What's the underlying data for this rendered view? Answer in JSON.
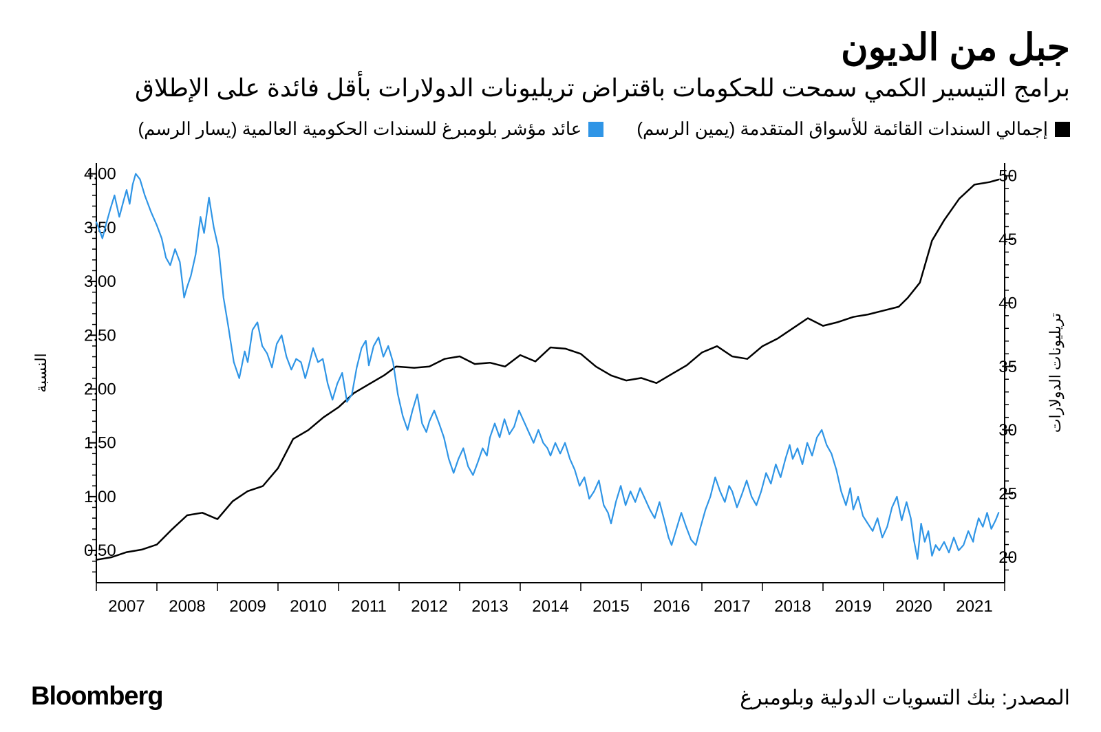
{
  "title": "جبل من الديون",
  "subtitle": "برامج التيسير الكمي سمحت للحكومات باقتراض تريليونات الدولارات بأقل فائدة على الإطلاق",
  "legend": {
    "series_black": {
      "label": "إجمالي السندات القائمة للأسواق المتقدمة (يمين الرسم)",
      "color": "#000000"
    },
    "series_blue": {
      "label": "عائد مؤشر بلومبرغ للسندات الحكومية العالمية (يسار الرسم)",
      "color": "#2f95e6"
    }
  },
  "source": "المصدر: بنك التسويات الدولية وبلومبرغ",
  "brand": "Bloomberg",
  "chart": {
    "type": "dual-axis-line",
    "x": {
      "years": [
        "2007",
        "2008",
        "2009",
        "2010",
        "2011",
        "2012",
        "2013",
        "2014",
        "2015",
        "2016",
        "2017",
        "2018",
        "2019",
        "2020",
        "2021"
      ],
      "start_year": 2006.5,
      "end_year": 2021.5
    },
    "left_axis": {
      "label": "النسبة",
      "min": 0.2,
      "max": 4.1,
      "ticks": [
        0.5,
        1.0,
        1.5,
        2.0,
        2.5,
        3.0,
        3.5,
        4.0
      ],
      "tick_labels": [
        "0.50",
        "1.00",
        "1.50",
        "2.00",
        "2.50",
        "3.00",
        "3.50",
        "4.00"
      ]
    },
    "right_axis": {
      "label": "تريليونات الدولارات",
      "min": 18,
      "max": 51,
      "ticks": [
        20,
        25,
        30,
        35,
        40,
        45,
        50
      ],
      "tick_labels": [
        "20",
        "25",
        "30",
        "35",
        "40",
        "45",
        "50"
      ]
    },
    "series_black": {
      "axis": "right",
      "color": "#000000",
      "stroke_width": 2.5,
      "data": [
        [
          2006.5,
          19.8
        ],
        [
          2006.75,
          20.0
        ],
        [
          2007.0,
          20.4
        ],
        [
          2007.25,
          20.6
        ],
        [
          2007.5,
          21.0
        ],
        [
          2007.75,
          22.2
        ],
        [
          2008.0,
          23.3
        ],
        [
          2008.25,
          23.5
        ],
        [
          2008.5,
          23.0
        ],
        [
          2008.75,
          24.4
        ],
        [
          2009.0,
          25.2
        ],
        [
          2009.25,
          25.6
        ],
        [
          2009.5,
          27.0
        ],
        [
          2009.75,
          29.3
        ],
        [
          2010.0,
          30.0
        ],
        [
          2010.25,
          31.0
        ],
        [
          2010.5,
          31.8
        ],
        [
          2010.75,
          32.9
        ],
        [
          2011.0,
          33.6
        ],
        [
          2011.25,
          34.3
        ],
        [
          2011.45,
          35.0
        ],
        [
          2011.75,
          34.9
        ],
        [
          2012.0,
          35.0
        ],
        [
          2012.25,
          35.6
        ],
        [
          2012.5,
          35.8
        ],
        [
          2012.75,
          35.2
        ],
        [
          2013.0,
          35.3
        ],
        [
          2013.25,
          35.0
        ],
        [
          2013.5,
          35.9
        ],
        [
          2013.75,
          35.4
        ],
        [
          2014.0,
          36.5
        ],
        [
          2014.25,
          36.4
        ],
        [
          2014.5,
          36.0
        ],
        [
          2014.75,
          35.0
        ],
        [
          2015.0,
          34.3
        ],
        [
          2015.25,
          33.9
        ],
        [
          2015.5,
          34.1
        ],
        [
          2015.75,
          33.7
        ],
        [
          2016.0,
          34.4
        ],
        [
          2016.25,
          35.1
        ],
        [
          2016.5,
          36.1
        ],
        [
          2016.75,
          36.6
        ],
        [
          2017.0,
          35.8
        ],
        [
          2017.25,
          35.6
        ],
        [
          2017.5,
          36.6
        ],
        [
          2017.75,
          37.2
        ],
        [
          2018.0,
          38.0
        ],
        [
          2018.25,
          38.8
        ],
        [
          2018.5,
          38.2
        ],
        [
          2018.75,
          38.5
        ],
        [
          2019.0,
          38.9
        ],
        [
          2019.25,
          39.1
        ],
        [
          2019.5,
          39.4
        ],
        [
          2019.75,
          39.7
        ],
        [
          2019.9,
          40.4
        ],
        [
          2020.1,
          41.6
        ],
        [
          2020.3,
          44.9
        ],
        [
          2020.5,
          46.5
        ],
        [
          2020.75,
          48.2
        ],
        [
          2021.0,
          49.3
        ],
        [
          2021.25,
          49.5
        ],
        [
          2021.4,
          49.7
        ]
      ]
    },
    "series_blue": {
      "axis": "left",
      "color": "#2f95e6",
      "stroke_width": 2.2,
      "data": [
        [
          2006.5,
          3.55
        ],
        [
          2006.55,
          3.48
        ],
        [
          2006.6,
          3.4
        ],
        [
          2006.67,
          3.55
        ],
        [
          2006.73,
          3.67
        ],
        [
          2006.8,
          3.8
        ],
        [
          2006.88,
          3.6
        ],
        [
          2006.95,
          3.75
        ],
        [
          2007.0,
          3.85
        ],
        [
          2007.05,
          3.72
        ],
        [
          2007.1,
          3.9
        ],
        [
          2007.15,
          4.0
        ],
        [
          2007.22,
          3.95
        ],
        [
          2007.3,
          3.8
        ],
        [
          2007.4,
          3.65
        ],
        [
          2007.5,
          3.52
        ],
        [
          2007.58,
          3.4
        ],
        [
          2007.65,
          3.22
        ],
        [
          2007.72,
          3.15
        ],
        [
          2007.8,
          3.3
        ],
        [
          2007.88,
          3.18
        ],
        [
          2007.95,
          2.85
        ],
        [
          2008.0,
          2.95
        ],
        [
          2008.06,
          3.05
        ],
        [
          2008.14,
          3.25
        ],
        [
          2008.22,
          3.6
        ],
        [
          2008.28,
          3.45
        ],
        [
          2008.36,
          3.78
        ],
        [
          2008.44,
          3.5
        ],
        [
          2008.52,
          3.3
        ],
        [
          2008.6,
          2.85
        ],
        [
          2008.68,
          2.58
        ],
        [
          2008.77,
          2.25
        ],
        [
          2008.86,
          2.1
        ],
        [
          2008.95,
          2.35
        ],
        [
          2009.0,
          2.25
        ],
        [
          2009.08,
          2.55
        ],
        [
          2009.16,
          2.62
        ],
        [
          2009.24,
          2.4
        ],
        [
          2009.32,
          2.33
        ],
        [
          2009.4,
          2.2
        ],
        [
          2009.48,
          2.42
        ],
        [
          2009.56,
          2.5
        ],
        [
          2009.64,
          2.3
        ],
        [
          2009.72,
          2.18
        ],
        [
          2009.8,
          2.28
        ],
        [
          2009.88,
          2.25
        ],
        [
          2009.95,
          2.1
        ],
        [
          2010.0,
          2.2
        ],
        [
          2010.08,
          2.38
        ],
        [
          2010.16,
          2.25
        ],
        [
          2010.24,
          2.28
        ],
        [
          2010.32,
          2.05
        ],
        [
          2010.4,
          1.9
        ],
        [
          2010.48,
          2.05
        ],
        [
          2010.56,
          2.15
        ],
        [
          2010.64,
          1.88
        ],
        [
          2010.72,
          1.95
        ],
        [
          2010.8,
          2.2
        ],
        [
          2010.88,
          2.38
        ],
        [
          2010.95,
          2.45
        ],
        [
          2011.0,
          2.22
        ],
        [
          2011.08,
          2.4
        ],
        [
          2011.16,
          2.48
        ],
        [
          2011.24,
          2.3
        ],
        [
          2011.32,
          2.4
        ],
        [
          2011.4,
          2.25
        ],
        [
          2011.48,
          1.95
        ],
        [
          2011.56,
          1.75
        ],
        [
          2011.64,
          1.62
        ],
        [
          2011.72,
          1.8
        ],
        [
          2011.8,
          1.95
        ],
        [
          2011.88,
          1.68
        ],
        [
          2011.95,
          1.6
        ],
        [
          2012.0,
          1.7
        ],
        [
          2012.08,
          1.8
        ],
        [
          2012.16,
          1.68
        ],
        [
          2012.24,
          1.55
        ],
        [
          2012.32,
          1.35
        ],
        [
          2012.4,
          1.22
        ],
        [
          2012.48,
          1.35
        ],
        [
          2012.56,
          1.45
        ],
        [
          2012.64,
          1.28
        ],
        [
          2012.72,
          1.2
        ],
        [
          2012.8,
          1.32
        ],
        [
          2012.88,
          1.45
        ],
        [
          2012.95,
          1.38
        ],
        [
          2013.0,
          1.55
        ],
        [
          2013.08,
          1.68
        ],
        [
          2013.16,
          1.55
        ],
        [
          2013.24,
          1.72
        ],
        [
          2013.32,
          1.58
        ],
        [
          2013.4,
          1.65
        ],
        [
          2013.48,
          1.8
        ],
        [
          2013.56,
          1.7
        ],
        [
          2013.64,
          1.6
        ],
        [
          2013.72,
          1.5
        ],
        [
          2013.8,
          1.62
        ],
        [
          2013.88,
          1.5
        ],
        [
          2013.95,
          1.45
        ],
        [
          2014.0,
          1.38
        ],
        [
          2014.08,
          1.5
        ],
        [
          2014.16,
          1.4
        ],
        [
          2014.24,
          1.5
        ],
        [
          2014.32,
          1.35
        ],
        [
          2014.4,
          1.25
        ],
        [
          2014.48,
          1.1
        ],
        [
          2014.56,
          1.18
        ],
        [
          2014.64,
          0.98
        ],
        [
          2014.72,
          1.05
        ],
        [
          2014.8,
          1.15
        ],
        [
          2014.88,
          0.92
        ],
        [
          2014.95,
          0.85
        ],
        [
          2015.0,
          0.75
        ],
        [
          2015.08,
          0.95
        ],
        [
          2015.16,
          1.1
        ],
        [
          2015.24,
          0.92
        ],
        [
          2015.32,
          1.05
        ],
        [
          2015.4,
          0.95
        ],
        [
          2015.48,
          1.08
        ],
        [
          2015.56,
          0.98
        ],
        [
          2015.64,
          0.88
        ],
        [
          2015.72,
          0.8
        ],
        [
          2015.8,
          0.95
        ],
        [
          2015.88,
          0.78
        ],
        [
          2015.95,
          0.62
        ],
        [
          2016.0,
          0.55
        ],
        [
          2016.08,
          0.7
        ],
        [
          2016.16,
          0.85
        ],
        [
          2016.24,
          0.72
        ],
        [
          2016.32,
          0.6
        ],
        [
          2016.4,
          0.55
        ],
        [
          2016.48,
          0.72
        ],
        [
          2016.56,
          0.88
        ],
        [
          2016.64,
          1.0
        ],
        [
          2016.72,
          1.18
        ],
        [
          2016.8,
          1.05
        ],
        [
          2016.88,
          0.95
        ],
        [
          2016.95,
          1.1
        ],
        [
          2017.0,
          1.05
        ],
        [
          2017.08,
          0.9
        ],
        [
          2017.16,
          1.02
        ],
        [
          2017.24,
          1.15
        ],
        [
          2017.32,
          1.0
        ],
        [
          2017.4,
          0.92
        ],
        [
          2017.48,
          1.05
        ],
        [
          2017.56,
          1.22
        ],
        [
          2017.64,
          1.12
        ],
        [
          2017.72,
          1.3
        ],
        [
          2017.8,
          1.18
        ],
        [
          2017.88,
          1.35
        ],
        [
          2017.95,
          1.48
        ],
        [
          2018.0,
          1.35
        ],
        [
          2018.08,
          1.45
        ],
        [
          2018.16,
          1.3
        ],
        [
          2018.24,
          1.5
        ],
        [
          2018.32,
          1.38
        ],
        [
          2018.4,
          1.55
        ],
        [
          2018.48,
          1.62
        ],
        [
          2018.56,
          1.48
        ],
        [
          2018.64,
          1.4
        ],
        [
          2018.72,
          1.25
        ],
        [
          2018.8,
          1.05
        ],
        [
          2018.88,
          0.92
        ],
        [
          2018.95,
          1.08
        ],
        [
          2019.0,
          0.88
        ],
        [
          2019.08,
          1.0
        ],
        [
          2019.16,
          0.82
        ],
        [
          2019.24,
          0.75
        ],
        [
          2019.32,
          0.68
        ],
        [
          2019.4,
          0.8
        ],
        [
          2019.48,
          0.62
        ],
        [
          2019.56,
          0.72
        ],
        [
          2019.64,
          0.9
        ],
        [
          2019.72,
          1.0
        ],
        [
          2019.8,
          0.78
        ],
        [
          2019.88,
          0.95
        ],
        [
          2019.95,
          0.8
        ],
        [
          2020.0,
          0.6
        ],
        [
          2020.06,
          0.42
        ],
        [
          2020.12,
          0.75
        ],
        [
          2020.18,
          0.58
        ],
        [
          2020.24,
          0.68
        ],
        [
          2020.3,
          0.45
        ],
        [
          2020.36,
          0.55
        ],
        [
          2020.42,
          0.5
        ],
        [
          2020.5,
          0.58
        ],
        [
          2020.58,
          0.48
        ],
        [
          2020.66,
          0.62
        ],
        [
          2020.74,
          0.5
        ],
        [
          2020.82,
          0.55
        ],
        [
          2020.9,
          0.68
        ],
        [
          2020.98,
          0.58
        ],
        [
          2021.0,
          0.65
        ],
        [
          2021.07,
          0.8
        ],
        [
          2021.14,
          0.72
        ],
        [
          2021.21,
          0.85
        ],
        [
          2021.28,
          0.7
        ],
        [
          2021.35,
          0.78
        ],
        [
          2021.4,
          0.85
        ]
      ]
    },
    "style": {
      "background": "#ffffff",
      "axis_color": "#000000",
      "tick_length_major": 12,
      "tick_length_minor": 6,
      "font_size_ticks": 24,
      "font_size_axis_label": 22
    }
  }
}
